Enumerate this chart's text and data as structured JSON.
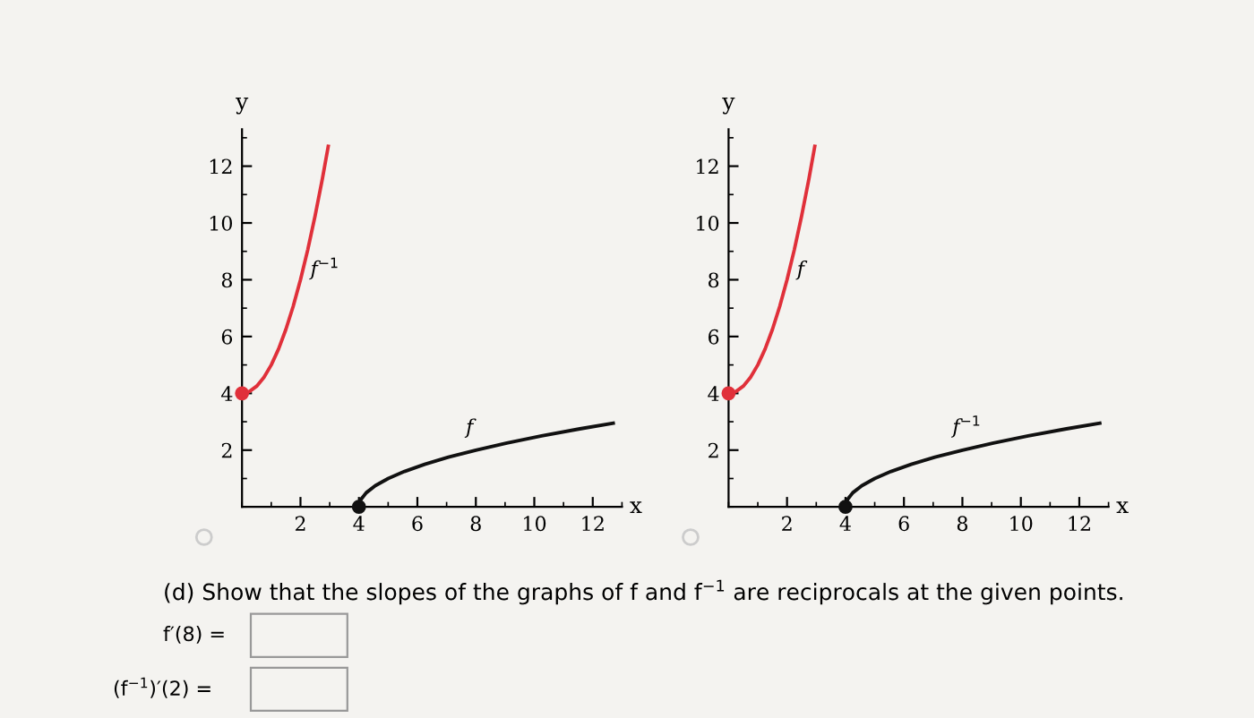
{
  "chart_data": [
    {
      "type": "line",
      "xlabel": "x",
      "ylabel": "y",
      "xlim": [
        0,
        13
      ],
      "ylim": [
        0,
        13.3
      ],
      "xticks": [
        2,
        4,
        6,
        8,
        10,
        12
      ],
      "yticks": [
        2,
        4,
        6,
        8,
        10,
        12
      ],
      "grid": false,
      "series": [
        {
          "name": "f$^{−1}$",
          "color": "#e0303a",
          "x": [
            0,
            0.25,
            0.5,
            0.75,
            1,
            1.25,
            1.5,
            1.75,
            2,
            2.25,
            2.5,
            2.75,
            2.95
          ],
          "values": [
            4,
            4.06,
            4.25,
            4.56,
            5,
            5.56,
            6.25,
            7.06,
            8,
            9.06,
            10.25,
            11.56,
            12.7
          ]
        },
        {
          "name": "f",
          "color": "#111111",
          "x": [
            4,
            4.06,
            4.25,
            4.56,
            5,
            5.56,
            6.25,
            7.06,
            8,
            9.06,
            10.25,
            11.56,
            12.7
          ],
          "values": [
            0,
            0.25,
            0.5,
            0.75,
            1,
            1.25,
            1.5,
            1.75,
            2,
            2.25,
            2.5,
            2.75,
            2.95
          ]
        },
        {
          "type": "scatter",
          "color": "#e0303a",
          "x": [
            0
          ],
          "values": [
            4
          ]
        },
        {
          "type": "scatter",
          "color": "#111111",
          "x": [
            4
          ],
          "values": [
            0
          ]
        }
      ],
      "annotations": [
        "(d) Show that the slopes of the graphs of f and f$^{−1}$ are reciprocals at the given points.",
        "f′(8) =",
        "(f$^{−1}$)′(2) ="
      ]
    },
    {
      "type": "line",
      "xlabel": "x",
      "ylabel": "y",
      "xlim": [
        0,
        13
      ],
      "ylim": [
        0,
        13.3
      ],
      "xticks": [
        2,
        4,
        6,
        8,
        10,
        12
      ],
      "yticks": [
        2,
        4,
        6,
        8,
        10,
        12
      ],
      "grid": false,
      "series": [
        {
          "name": "f",
          "color": "#e0303a",
          "x": [
            0,
            0.25,
            0.5,
            0.75,
            1,
            1.25,
            1.5,
            1.75,
            2,
            2.25,
            2.5,
            2.75,
            2.95
          ],
          "values": [
            4,
            4.06,
            4.25,
            4.56,
            5,
            5.56,
            6.25,
            7.06,
            8,
            9.06,
            10.25,
            11.56,
            12.7
          ]
        },
        {
          "name": "f$^{−1}$",
          "color": "#111111",
          "x": [
            4,
            4.06,
            4.25,
            4.56,
            5,
            5.56,
            6.25,
            7.06,
            8,
            9.06,
            10.25,
            11.56,
            12.7
          ],
          "values": [
            0,
            0.25,
            0.5,
            0.75,
            1,
            1.25,
            1.5,
            1.75,
            2,
            2.25,
            2.5,
            2.75,
            2.95
          ]
        },
        {
          "type": "scatter",
          "color": "#e0303a",
          "x": [
            0
          ],
          "values": [
            4
          ]
        },
        {
          "type": "scatter",
          "color": "#111111",
          "x": [
            4
          ],
          "values": [
            0
          ]
        }
      ]
    }
  ]
}
